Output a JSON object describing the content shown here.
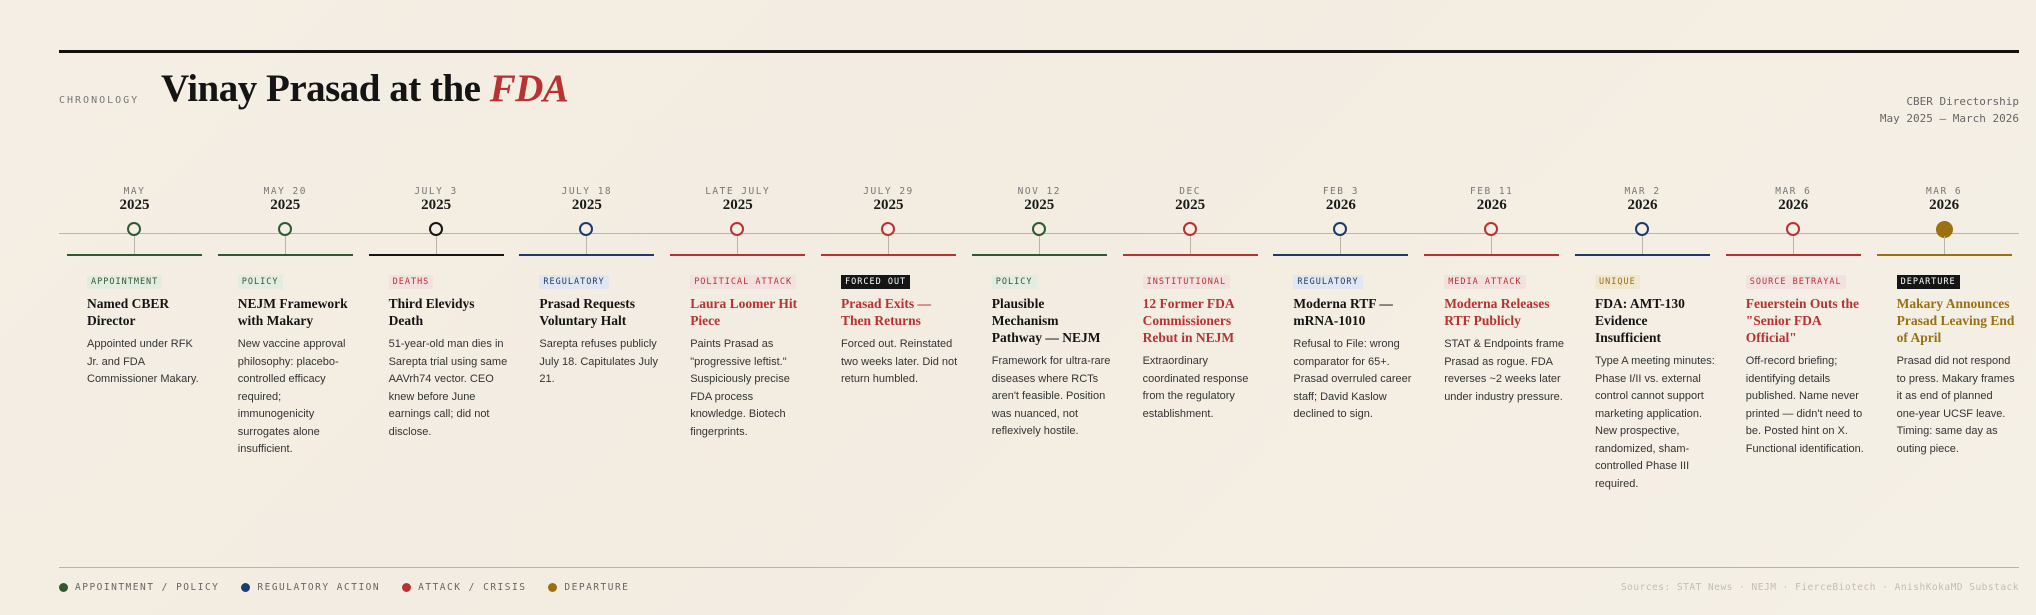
{
  "header": {
    "eyebrow": "CHRONOLOGY",
    "title_main": "Vinay Prasad at the ",
    "title_accent": "FDA",
    "meta_line1": "CBER Directorship",
    "meta_line2": "May 2025 – March 2026"
  },
  "colors": {
    "green": "#2f5a2f",
    "navy": "#1e3a6b",
    "red": "#b83232",
    "gold": "#9a7010",
    "black": "#151515",
    "tag_green_bg": "#e3ece0",
    "tag_navy_bg": "#e0e7f0",
    "tag_red_bg": "#f3e1e0",
    "tag_gold_bg": "#f1e7cf"
  },
  "events": [
    {
      "month": "MAY",
      "year": "2025",
      "cat": "green",
      "filled": false,
      "tag": "APPOINTMENT",
      "tag_style": "green",
      "title": "Named CBER Director",
      "title_color": "dark",
      "body": "Appointed under RFK Jr. and FDA Commissioner Makary."
    },
    {
      "month": "MAY 20",
      "year": "2025",
      "cat": "green",
      "filled": false,
      "tag": "POLICY",
      "tag_style": "green",
      "title": "NEJM Framework with Makary",
      "title_color": "dark",
      "body": "New vaccine approval philosophy: placebo-controlled efficacy required; immunogenicity surrogates alone insufficient."
    },
    {
      "month": "JULY 3",
      "year": "2025",
      "cat": "black",
      "filled": false,
      "tag": "DEATHS",
      "tag_style": "red",
      "title": "Third Elevidys Death",
      "title_color": "dark",
      "body": "51-year-old man dies in Sarepta trial using same AAVrh74 vector. CEO knew before June earnings call; did not disclose."
    },
    {
      "month": "JULY 18",
      "year": "2025",
      "cat": "navy",
      "filled": false,
      "tag": "REGULATORY",
      "tag_style": "navy",
      "title": "Prasad Requests Voluntary Halt",
      "title_color": "dark",
      "body": "Sarepta refuses publicly July 18. Capitulates July 21."
    },
    {
      "month": "LATE JULY",
      "year": "2025",
      "cat": "red",
      "filled": false,
      "tag": "POLITICAL ATTACK",
      "tag_style": "red",
      "title": "Laura Loomer Hit Piece",
      "title_color": "red",
      "body": "Paints Prasad as \"progressive leftist.\" Suspiciously precise FDA process knowledge. Biotech fingerprints."
    },
    {
      "month": "JULY 29",
      "year": "2025",
      "cat": "red",
      "filled": false,
      "tag": "FORCED OUT",
      "tag_style": "black",
      "title": "Prasad Exits — Then Returns",
      "title_color": "red",
      "body": "Forced out. Reinstated two weeks later. Did not return humbled."
    },
    {
      "month": "NOV 12",
      "year": "2025",
      "cat": "green",
      "filled": false,
      "tag": "POLICY",
      "tag_style": "green",
      "title": "Plausible Mechanism Pathway — NEJM",
      "title_color": "dark",
      "body": "Framework for ultra-rare diseases where RCTs aren't feasible. Position was nuanced, not reflexively hostile."
    },
    {
      "month": "DEC",
      "year": "2025",
      "cat": "red",
      "filled": false,
      "tag": "INSTITUTIONAL",
      "tag_style": "red",
      "title": "12 Former FDA Commissioners Rebut in NEJM",
      "title_color": "red",
      "body": "Extraordinary coordinated response from the regulatory establishment."
    },
    {
      "month": "FEB 3",
      "year": "2026",
      "cat": "navy",
      "filled": false,
      "tag": "REGULATORY",
      "tag_style": "navy",
      "title": "Moderna RTF — mRNA-1010",
      "title_color": "dark",
      "body": "Refusal to File: wrong comparator for 65+. Prasad overruled career staff; David Kaslow declined to sign."
    },
    {
      "month": "FEB 11",
      "year": "2026",
      "cat": "red",
      "filled": false,
      "tag": "MEDIA ATTACK",
      "tag_style": "red",
      "title": "Moderna Releases RTF Publicly",
      "title_color": "red",
      "body": "STAT & Endpoints frame Prasad as rogue. FDA reverses ~2 weeks later under industry pressure."
    },
    {
      "month": "MAR 2",
      "year": "2026",
      "cat": "navy",
      "filled": false,
      "tag": "UNIQUE",
      "tag_style": "gold",
      "title": "FDA: AMT-130 Evidence Insufficient",
      "title_color": "dark",
      "body": "Type A meeting minutes: Phase I/II vs. external control cannot support marketing application. New prospective, randomized, sham-controlled Phase III required."
    },
    {
      "month": "MAR 6",
      "year": "2026",
      "cat": "red",
      "filled": false,
      "tag": "SOURCE BETRAYAL",
      "tag_style": "red",
      "title": "Feuerstein Outs the \"Senior FDA Official\"",
      "title_color": "red",
      "body": "Off-record briefing; identifying details published. Name never printed — didn't need to be. Posted hint on X. Functional identification."
    },
    {
      "month": "MAR 6",
      "year": "2026",
      "cat": "gold",
      "filled": true,
      "tag": "DEPARTURE",
      "tag_style": "black",
      "title": "Makary Announces Prasad Leaving End of April",
      "title_color": "gold",
      "body": "Prasad did not respond to press. Makary frames it as end of planned one-year UCSF leave. Timing: same day as outing piece."
    }
  ],
  "legend": [
    {
      "label": "APPOINTMENT / POLICY",
      "color": "#2f5a2f"
    },
    {
      "label": "REGULATORY ACTION",
      "color": "#1e3a6b"
    },
    {
      "label": "ATTACK / CRISIS",
      "color": "#b83232"
    },
    {
      "label": "DEPARTURE",
      "color": "#9a7010"
    }
  ],
  "sources": "Sources: STAT News · NEJM · FierceBiotech · AnishKokaMD Substack"
}
